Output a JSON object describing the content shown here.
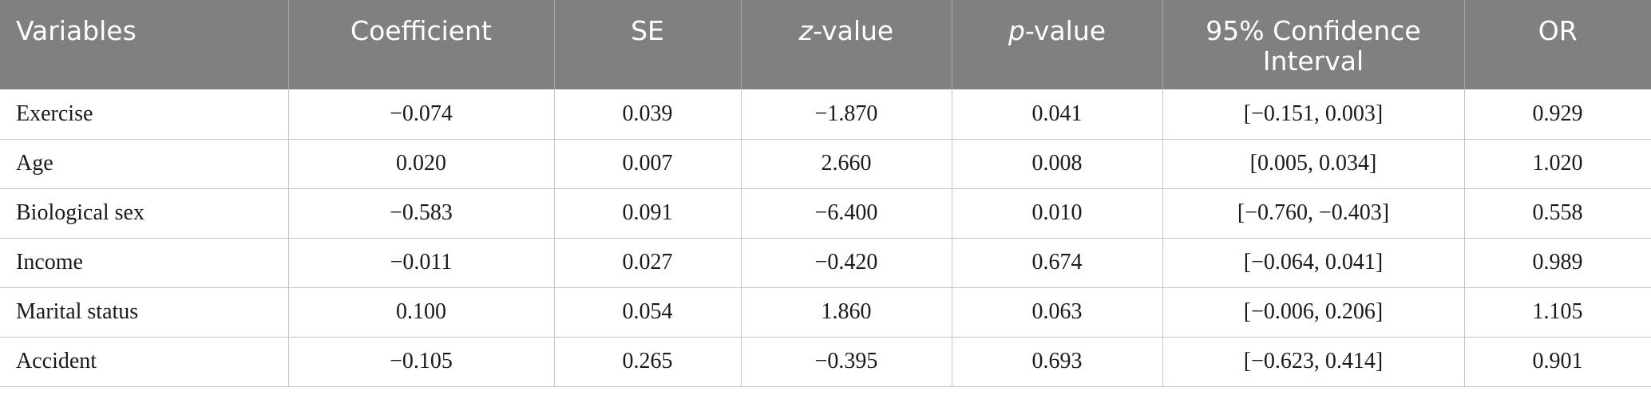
{
  "table": {
    "headers": [
      {
        "pre": "Variables",
        "italic": "",
        "post": ""
      },
      {
        "pre": "Coefficient",
        "italic": "",
        "post": ""
      },
      {
        "pre": "SE",
        "italic": "",
        "post": ""
      },
      {
        "pre": "",
        "italic": "z",
        "post": "-value"
      },
      {
        "pre": "",
        "italic": "p",
        "post": "-value"
      },
      {
        "pre": "95% Confidence Interval",
        "italic": "",
        "post": ""
      },
      {
        "pre": "OR",
        "italic": "",
        "post": ""
      }
    ],
    "rows": [
      [
        "Exercise",
        "−0.074",
        "0.039",
        "−1.870",
        "0.041",
        "[−0.151, 0.003]",
        "0.929"
      ],
      [
        "Age",
        "0.020",
        "0.007",
        "2.660",
        "0.008",
        "[0.005, 0.034]",
        "1.020"
      ],
      [
        "Biological sex",
        "−0.583",
        "0.091",
        "−6.400",
        "0.010",
        "[−0.760, −0.403]",
        "0.558"
      ],
      [
        "Income",
        "−0.011",
        "0.027",
        "−0.420",
        "0.674",
        "[−0.064, 0.041]",
        "0.989"
      ],
      [
        "Marital status",
        "0.100",
        "0.054",
        "1.860",
        "0.063",
        "[−0.006, 0.206]",
        "1.105"
      ],
      [
        "Accident",
        "−0.105",
        "0.265",
        "−0.395",
        "0.693",
        "[−0.623, 0.414]",
        "0.901"
      ]
    ]
  },
  "colors": {
    "header_bg": "#808080",
    "header_text": "#ffffff",
    "grid": "#c4c4c4"
  }
}
